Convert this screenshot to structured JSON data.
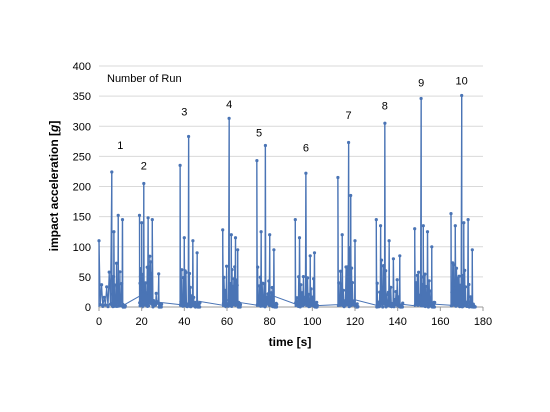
{
  "chart_data": {
    "type": "line",
    "title": "",
    "xlabel": "time [s]",
    "ylabel_prefix": "impact acceleration [",
    "ylabel_unit": "g",
    "ylabel_suffix": "]",
    "xlim": [
      0,
      180
    ],
    "ylim": [
      0,
      400
    ],
    "xticks": [
      "0",
      "20",
      "40",
      "60",
      "80",
      "100",
      "120",
      "140",
      "160",
      "180"
    ],
    "yticks": [
      "0",
      "50",
      "100",
      "150",
      "200",
      "250",
      "300",
      "350",
      "400"
    ],
    "grid": "horizontal",
    "legend_title": "Number of Run",
    "series_color": "#4a74b5",
    "runs": [
      {
        "label": "1",
        "label_x": 10,
        "label_y": 262,
        "segments": [
          {
            "x": 0,
            "y": 110
          },
          {
            "x": 6,
            "y": 224
          },
          {
            "x": 7,
            "y": 125
          },
          {
            "x": 9,
            "y": 152
          },
          {
            "x": 11,
            "y": 145
          }
        ]
      },
      {
        "label": "2",
        "label_x": 21,
        "label_y": 228,
        "segments": [
          {
            "x": 19,
            "y": 152
          },
          {
            "x": 20,
            "y": 140
          },
          {
            "x": 21,
            "y": 205
          },
          {
            "x": 23,
            "y": 148
          },
          {
            "x": 25,
            "y": 145
          },
          {
            "x": 28,
            "y": 55
          }
        ]
      },
      {
        "label": "3",
        "label_x": 40,
        "label_y": 318,
        "segments": [
          {
            "x": 38,
            "y": 235
          },
          {
            "x": 40,
            "y": 115
          },
          {
            "x": 42,
            "y": 283
          },
          {
            "x": 44,
            "y": 110
          },
          {
            "x": 46,
            "y": 90
          }
        ]
      },
      {
        "label": "4",
        "label_x": 61,
        "label_y": 330,
        "segments": [
          {
            "x": 58,
            "y": 128
          },
          {
            "x": 61,
            "y": 313
          },
          {
            "x": 62,
            "y": 120
          },
          {
            "x": 64,
            "y": 115
          },
          {
            "x": 65,
            "y": 95
          }
        ]
      },
      {
        "label": "5",
        "label_x": 75,
        "label_y": 283,
        "segments": [
          {
            "x": 74,
            "y": 243
          },
          {
            "x": 76,
            "y": 125
          },
          {
            "x": 78,
            "y": 268
          },
          {
            "x": 80,
            "y": 120
          },
          {
            "x": 82,
            "y": 95
          }
        ]
      },
      {
        "label": "6",
        "label_x": 97,
        "label_y": 258,
        "segments": [
          {
            "x": 92,
            "y": 145
          },
          {
            "x": 94,
            "y": 115
          },
          {
            "x": 97,
            "y": 222
          },
          {
            "x": 99,
            "y": 85
          },
          {
            "x": 101,
            "y": 90
          }
        ]
      },
      {
        "label": "7",
        "label_x": 117,
        "label_y": 312,
        "segments": [
          {
            "x": 112,
            "y": 215
          },
          {
            "x": 114,
            "y": 120
          },
          {
            "x": 117,
            "y": 273
          },
          {
            "x": 118,
            "y": 185
          },
          {
            "x": 120,
            "y": 110
          }
        ]
      },
      {
        "label": "8",
        "label_x": 134,
        "label_y": 328,
        "segments": [
          {
            "x": 130,
            "y": 145
          },
          {
            "x": 132,
            "y": 135
          },
          {
            "x": 134,
            "y": 305
          },
          {
            "x": 136,
            "y": 110
          },
          {
            "x": 138,
            "y": 80
          },
          {
            "x": 141,
            "y": 85
          }
        ]
      },
      {
        "label": "9",
        "label_x": 151,
        "label_y": 366,
        "segments": [
          {
            "x": 148,
            "y": 130
          },
          {
            "x": 151,
            "y": 346
          },
          {
            "x": 152,
            "y": 135
          },
          {
            "x": 154,
            "y": 125
          },
          {
            "x": 156,
            "y": 100
          }
        ]
      },
      {
        "label": "10",
        "label_x": 170,
        "label_y": 369,
        "segments": [
          {
            "x": 165,
            "y": 155
          },
          {
            "x": 167,
            "y": 135
          },
          {
            "x": 170,
            "y": 351
          },
          {
            "x": 171,
            "y": 140
          },
          {
            "x": 173,
            "y": 145
          },
          {
            "x": 175,
            "y": 95
          }
        ]
      }
    ],
    "baseline": [
      {
        "x": 0,
        "y": 5
      },
      {
        "x": 11,
        "y": 2
      },
      {
        "x": 19,
        "y": 18
      },
      {
        "x": 28,
        "y": 8
      },
      {
        "x": 38,
        "y": 4
      },
      {
        "x": 46,
        "y": 10
      },
      {
        "x": 58,
        "y": 3
      },
      {
        "x": 61,
        "y": 14
      },
      {
        "x": 65,
        "y": 8
      },
      {
        "x": 74,
        "y": 3
      },
      {
        "x": 82,
        "y": 18
      },
      {
        "x": 92,
        "y": 5
      },
      {
        "x": 101,
        "y": 2
      },
      {
        "x": 112,
        "y": 4
      },
      {
        "x": 120,
        "y": 12
      },
      {
        "x": 130,
        "y": 3
      },
      {
        "x": 141,
        "y": 5
      },
      {
        "x": 148,
        "y": 2
      },
      {
        "x": 156,
        "y": 5
      },
      {
        "x": 165,
        "y": 3
      },
      {
        "x": 175,
        "y": 2
      }
    ]
  }
}
